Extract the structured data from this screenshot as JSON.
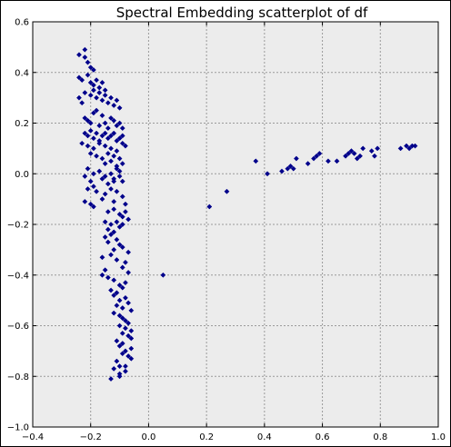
{
  "chart_data": {
    "type": "scatter",
    "title": "Spectral Embedding scatterplot of df",
    "xlabel": "",
    "ylabel": "",
    "xlim": [
      -0.4,
      1.0
    ],
    "ylim": [
      -1.0,
      0.6
    ],
    "xticks": [
      "−0.4",
      "−0.2",
      "0.0",
      "0.2",
      "0.4",
      "0.6",
      "0.8",
      "1.0"
    ],
    "xtick_values": [
      -0.4,
      -0.2,
      0.0,
      0.2,
      0.4,
      0.6,
      0.8,
      1.0
    ],
    "yticks": [
      "−1.0",
      "−0.8",
      "−0.6",
      "−0.4",
      "−0.2",
      "0.0",
      "0.2",
      "0.4",
      "0.6"
    ],
    "ytick_values": [
      -1.0,
      -0.8,
      -0.6,
      -0.4,
      -0.2,
      0.0,
      0.2,
      0.4,
      0.6
    ],
    "grid": true,
    "colors": {
      "background": "#ececec",
      "marker": "#00008b",
      "grid": "#9a9a9a"
    },
    "series": [
      {
        "x": [
          -0.24,
          -0.22,
          -0.22,
          -0.21,
          -0.2,
          -0.19,
          -0.24,
          -0.23,
          -0.21,
          -0.2,
          -0.19,
          -0.18,
          -0.17,
          -0.16,
          -0.15,
          -0.22,
          -0.2,
          -0.19,
          -0.18,
          -0.17,
          -0.16,
          -0.15,
          -0.14,
          -0.13,
          -0.12,
          -0.11,
          -0.1,
          -0.24,
          -0.23,
          -0.22,
          -0.21,
          -0.2,
          -0.19,
          -0.18,
          -0.17,
          -0.16,
          -0.15,
          -0.14,
          -0.13,
          -0.12,
          -0.11,
          -0.1,
          -0.09,
          -0.22,
          -0.21,
          -0.2,
          -0.19,
          -0.18,
          -0.17,
          -0.16,
          -0.15,
          -0.14,
          -0.13,
          -0.12,
          -0.11,
          -0.1,
          -0.09,
          -0.23,
          -0.21,
          -0.19,
          -0.17,
          -0.15,
          -0.13,
          -0.11,
          -0.09,
          -0.08,
          -0.2,
          -0.18,
          -0.16,
          -0.14,
          -0.12,
          -0.1,
          -0.15,
          -0.13,
          -0.11,
          -0.09,
          -0.21,
          -0.19,
          -0.17,
          -0.15,
          -0.13,
          -0.12,
          -0.11,
          -0.1,
          -0.22,
          -0.2,
          -0.19,
          -0.16,
          -0.14,
          -0.12,
          -0.1,
          -0.09,
          -0.21,
          -0.18,
          -0.15,
          -0.13,
          -0.11,
          -0.09,
          -0.22,
          -0.2,
          -0.19,
          -0.16,
          -0.12,
          -0.08,
          -0.14,
          -0.12,
          -0.1,
          -0.08,
          -0.09,
          -0.07,
          -0.15,
          -0.13,
          -0.11,
          -0.09,
          -0.14,
          -0.12,
          -0.1,
          -0.15,
          -0.14,
          -0.13,
          -0.11,
          -0.1,
          -0.12,
          -0.09,
          -0.07,
          -0.16,
          -0.13,
          -0.11,
          -0.08,
          -0.15,
          -0.09,
          -0.07,
          -0.16,
          -0.14,
          -0.12,
          -0.1,
          -0.08,
          -0.13,
          -0.11,
          -0.09,
          -0.12,
          -0.1,
          -0.08,
          -0.11,
          -0.09,
          -0.07,
          -0.06,
          -0.12,
          -0.1,
          -0.08,
          -0.09,
          -0.07,
          -0.1,
          -0.08,
          -0.06,
          -0.09,
          -0.07,
          -0.06,
          -0.11,
          -0.09,
          -0.1,
          -0.08,
          -0.06,
          -0.09,
          -0.07,
          -0.06,
          -0.11,
          -0.08,
          -0.12,
          -0.1,
          -0.08,
          -0.13,
          -0.1,
          -0.1,
          0.05,
          0.21,
          0.27,
          0.37,
          0.41,
          0.46,
          0.48,
          0.49,
          0.5,
          0.51,
          0.55,
          0.57,
          0.58,
          0.59,
          0.62,
          0.65,
          0.68,
          0.69,
          0.7,
          0.71,
          0.72,
          0.73,
          0.74,
          0.77,
          0.78,
          0.79,
          0.87,
          0.89,
          0.9,
          0.91,
          0.92
        ],
        "y": [
          0.47,
          0.49,
          0.46,
          0.44,
          0.42,
          0.41,
          0.38,
          0.37,
          0.39,
          0.36,
          0.35,
          0.37,
          0.34,
          0.36,
          0.33,
          0.32,
          0.31,
          0.33,
          0.3,
          0.32,
          0.29,
          0.31,
          0.28,
          0.3,
          0.27,
          0.29,
          0.26,
          0.3,
          0.28,
          0.22,
          0.21,
          0.2,
          0.24,
          0.25,
          0.19,
          0.23,
          0.2,
          0.18,
          0.22,
          0.21,
          0.19,
          0.2,
          0.18,
          0.16,
          0.15,
          0.17,
          0.14,
          0.16,
          0.13,
          0.15,
          0.16,
          0.14,
          0.15,
          0.16,
          0.13,
          0.14,
          0.15,
          0.12,
          0.11,
          0.1,
          0.12,
          0.11,
          0.1,
          0.09,
          0.12,
          0.11,
          0.08,
          0.07,
          0.06,
          0.08,
          0.07,
          0.06,
          0.04,
          0.05,
          0.03,
          0.04,
          0.02,
          0.0,
          0.01,
          -0.01,
          0.0,
          -0.02,
          0.02,
          0.01,
          -0.01,
          -0.03,
          -0.05,
          -0.02,
          -0.04,
          -0.03,
          -0.01,
          -0.03,
          -0.06,
          -0.07,
          -0.08,
          -0.06,
          -0.07,
          -0.09,
          -0.11,
          -0.12,
          -0.13,
          -0.1,
          -0.11,
          -0.12,
          -0.15,
          -0.14,
          -0.16,
          -0.15,
          -0.17,
          -0.18,
          -0.19,
          -0.2,
          -0.19,
          -0.2,
          -0.22,
          -0.23,
          -0.21,
          -0.25,
          -0.27,
          -0.24,
          -0.26,
          -0.28,
          -0.3,
          -0.29,
          -0.31,
          -0.33,
          -0.32,
          -0.34,
          -0.35,
          -0.38,
          -0.37,
          -0.39,
          -0.4,
          -0.41,
          -0.42,
          -0.44,
          -0.43,
          -0.46,
          -0.47,
          -0.45,
          -0.48,
          -0.5,
          -0.49,
          -0.52,
          -0.53,
          -0.51,
          -0.54,
          -0.55,
          -0.56,
          -0.58,
          -0.57,
          -0.59,
          -0.6,
          -0.61,
          -0.62,
          -0.63,
          -0.64,
          -0.65,
          -0.66,
          -0.67,
          -0.68,
          -0.7,
          -0.69,
          -0.71,
          -0.72,
          -0.73,
          -0.74,
          -0.76,
          -0.77,
          -0.79,
          -0.78,
          -0.81,
          -0.8,
          -0.76,
          -0.4,
          -0.13,
          -0.07,
          0.05,
          0.0,
          0.01,
          0.02,
          0.03,
          0.02,
          0.06,
          0.04,
          0.06,
          0.07,
          0.08,
          0.05,
          0.05,
          0.07,
          0.08,
          0.09,
          0.08,
          0.06,
          0.07,
          0.1,
          0.09,
          0.07,
          0.1,
          0.1,
          0.11,
          0.1,
          0.11,
          0.11
        ]
      }
    ]
  }
}
